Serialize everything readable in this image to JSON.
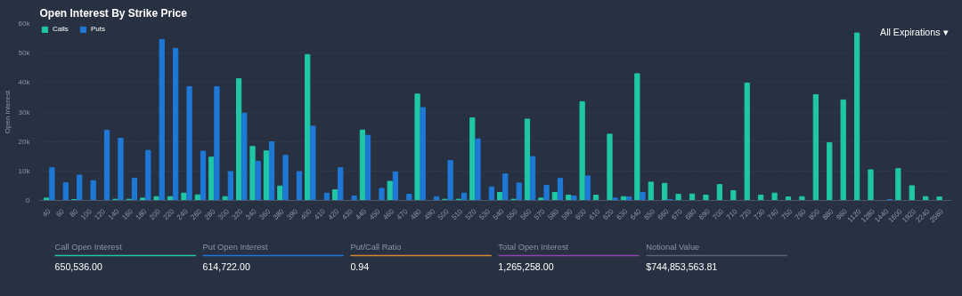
{
  "chart_data": [
    {
      "type": "bar",
      "title": "Open Interest By Strike Price",
      "ylabel": "Open Interest",
      "annotations": [
        "All Expirations ▾"
      ],
      "categories": [
        "40",
        "60",
        "80",
        "100",
        "120",
        "140",
        "160",
        "180",
        "200",
        "220",
        "240",
        "260",
        "280",
        "300",
        "320",
        "340",
        "360",
        "380",
        "390",
        "400",
        "410",
        "420",
        "430",
        "440",
        "450",
        "460",
        "470",
        "480",
        "490",
        "500",
        "510",
        "520",
        "530",
        "540",
        "550",
        "560",
        "570",
        "580",
        "590",
        "600",
        "610",
        "620",
        "630",
        "640",
        "650",
        "660",
        "670",
        "680",
        "690",
        "700",
        "710",
        "720",
        "730",
        "740",
        "750",
        "760",
        "800",
        "880",
        "960",
        "1120",
        "1280",
        "1440",
        "1600",
        "1920",
        "2240",
        "2560"
      ],
      "series": [
        {
          "name": "Calls",
          "color": "#1fc7a6",
          "values": [
            800,
            0,
            300,
            0,
            0,
            400,
            400,
            800,
            1300,
            1300,
            2500,
            1900,
            14700,
            1300,
            41300,
            18300,
            16800,
            4900,
            0,
            49500,
            0,
            3600,
            0,
            23900,
            0,
            6500,
            0,
            36100,
            0,
            400,
            400,
            28000,
            0,
            2700,
            400,
            27600,
            800,
            2700,
            1800,
            33500,
            1800,
            22500,
            1300,
            43000,
            6200,
            5800,
            2100,
            2200,
            1800,
            5400,
            3300,
            39800,
            1800,
            2500,
            1200,
            1300,
            35900,
            19600,
            34100,
            56800,
            10400,
            0,
            10800,
            5000,
            1300,
            1200
          ]
        },
        {
          "name": "Puts",
          "color": "#1e78d6",
          "values": [
            11100,
            6000,
            8600,
            6700,
            23800,
            21100,
            7500,
            17000,
            54600,
            51600,
            38600,
            16700,
            38600,
            9800,
            29600,
            13300,
            19900,
            15300,
            9800,
            25200,
            2500,
            11100,
            1500,
            22100,
            4100,
            9700,
            2100,
            31500,
            1300,
            13500,
            2500,
            20900,
            4600,
            9000,
            5900,
            14900,
            5100,
            7500,
            1500,
            8300,
            0,
            800,
            1200,
            2700,
            0,
            300,
            0,
            0,
            0,
            0,
            0,
            0,
            0,
            0,
            0,
            0,
            0,
            0,
            0,
            0,
            0,
            300,
            0,
            0,
            0,
            0
          ]
        }
      ],
      "ylim": [
        0,
        60000
      ],
      "yticks": [
        {
          "value": 0,
          "label": "0"
        },
        {
          "value": 10000,
          "label": "10k"
        },
        {
          "value": 20000,
          "label": "20k"
        },
        {
          "value": 30000,
          "label": "30k"
        },
        {
          "value": 40000,
          "label": "40k"
        },
        {
          "value": 50000,
          "label": "50k"
        },
        {
          "value": 60000,
          "label": "60k"
        }
      ],
      "grid": "y",
      "legend": "top left"
    },
    {
      "type": "other",
      "categories": [
        "Call Open Interest",
        "Put Open Interest",
        "Put/Call Ratio",
        "Total Open Interest",
        "Notional Value"
      ],
      "value_labels": [
        "650,536.00",
        "614,722.00",
        "0.94",
        "1,265,258.00",
        "$744,853,563.81"
      ],
      "colors": [
        "#1fc7a6",
        "#1e78d6",
        "#d08a2c",
        "#8e44ad",
        "#5a6577"
      ]
    }
  ]
}
